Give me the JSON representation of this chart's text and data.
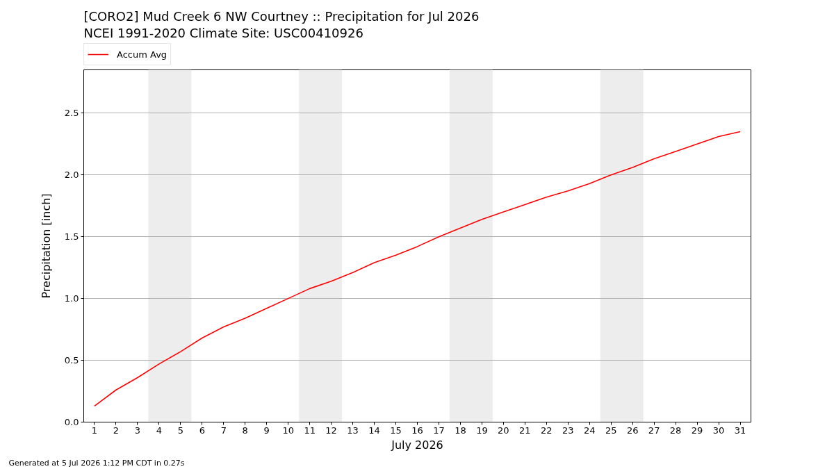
{
  "chart_data": {
    "type": "line",
    "title": "[CORO2] Mud Creek 6 NW Courtney :: Precipitation for Jul 2026",
    "subtitle": "NCEI 1991-2020 Climate Site: USC00410926",
    "xlabel": "July 2026",
    "ylabel": "Precipitation [inch]",
    "x": [
      1,
      2,
      3,
      4,
      5,
      6,
      7,
      8,
      9,
      10,
      11,
      12,
      13,
      14,
      15,
      16,
      17,
      18,
      19,
      20,
      21,
      22,
      23,
      24,
      25,
      26,
      27,
      28,
      29,
      30,
      31
    ],
    "series": [
      {
        "name": "Accum Avg",
        "color": "#ff0000",
        "values": [
          0.13,
          0.26,
          0.36,
          0.47,
          0.57,
          0.68,
          0.77,
          0.84,
          0.92,
          1.0,
          1.08,
          1.14,
          1.21,
          1.29,
          1.35,
          1.42,
          1.5,
          1.57,
          1.64,
          1.7,
          1.76,
          1.82,
          1.87,
          1.93,
          2.0,
          2.06,
          2.13,
          2.19,
          2.25,
          2.31,
          2.35
        ]
      }
    ],
    "xlim": [
      0.5,
      31.5
    ],
    "ylim": [
      0,
      2.85
    ],
    "xticks": [
      1,
      2,
      3,
      4,
      5,
      6,
      7,
      8,
      9,
      10,
      11,
      12,
      13,
      14,
      15,
      16,
      17,
      18,
      19,
      20,
      21,
      22,
      23,
      24,
      25,
      26,
      27,
      28,
      29,
      30,
      31
    ],
    "yticks": [
      {
        "value": 0,
        "label": "0.0"
      },
      0.5,
      {
        "value": 1,
        "label": "1.0"
      },
      1.5,
      {
        "value": 2,
        "label": "2.0"
      },
      2.5
    ],
    "grid": "y",
    "legend": "top",
    "line_style": "solid",
    "bands": [
      {
        "axis": "x",
        "from": 3.5,
        "to": 5.5,
        "color": "#ededed"
      },
      {
        "axis": "x",
        "from": 10.5,
        "to": 12.5,
        "color": "#ededed"
      },
      {
        "axis": "x",
        "from": 17.5,
        "to": 19.5,
        "color": "#ededed"
      },
      {
        "axis": "x",
        "from": 24.5,
        "to": 26.5,
        "color": "#ededed"
      }
    ],
    "annotations": [
      "Generated at 5 Jul 2026 1:12 PM CDT in 0.27s"
    ]
  }
}
